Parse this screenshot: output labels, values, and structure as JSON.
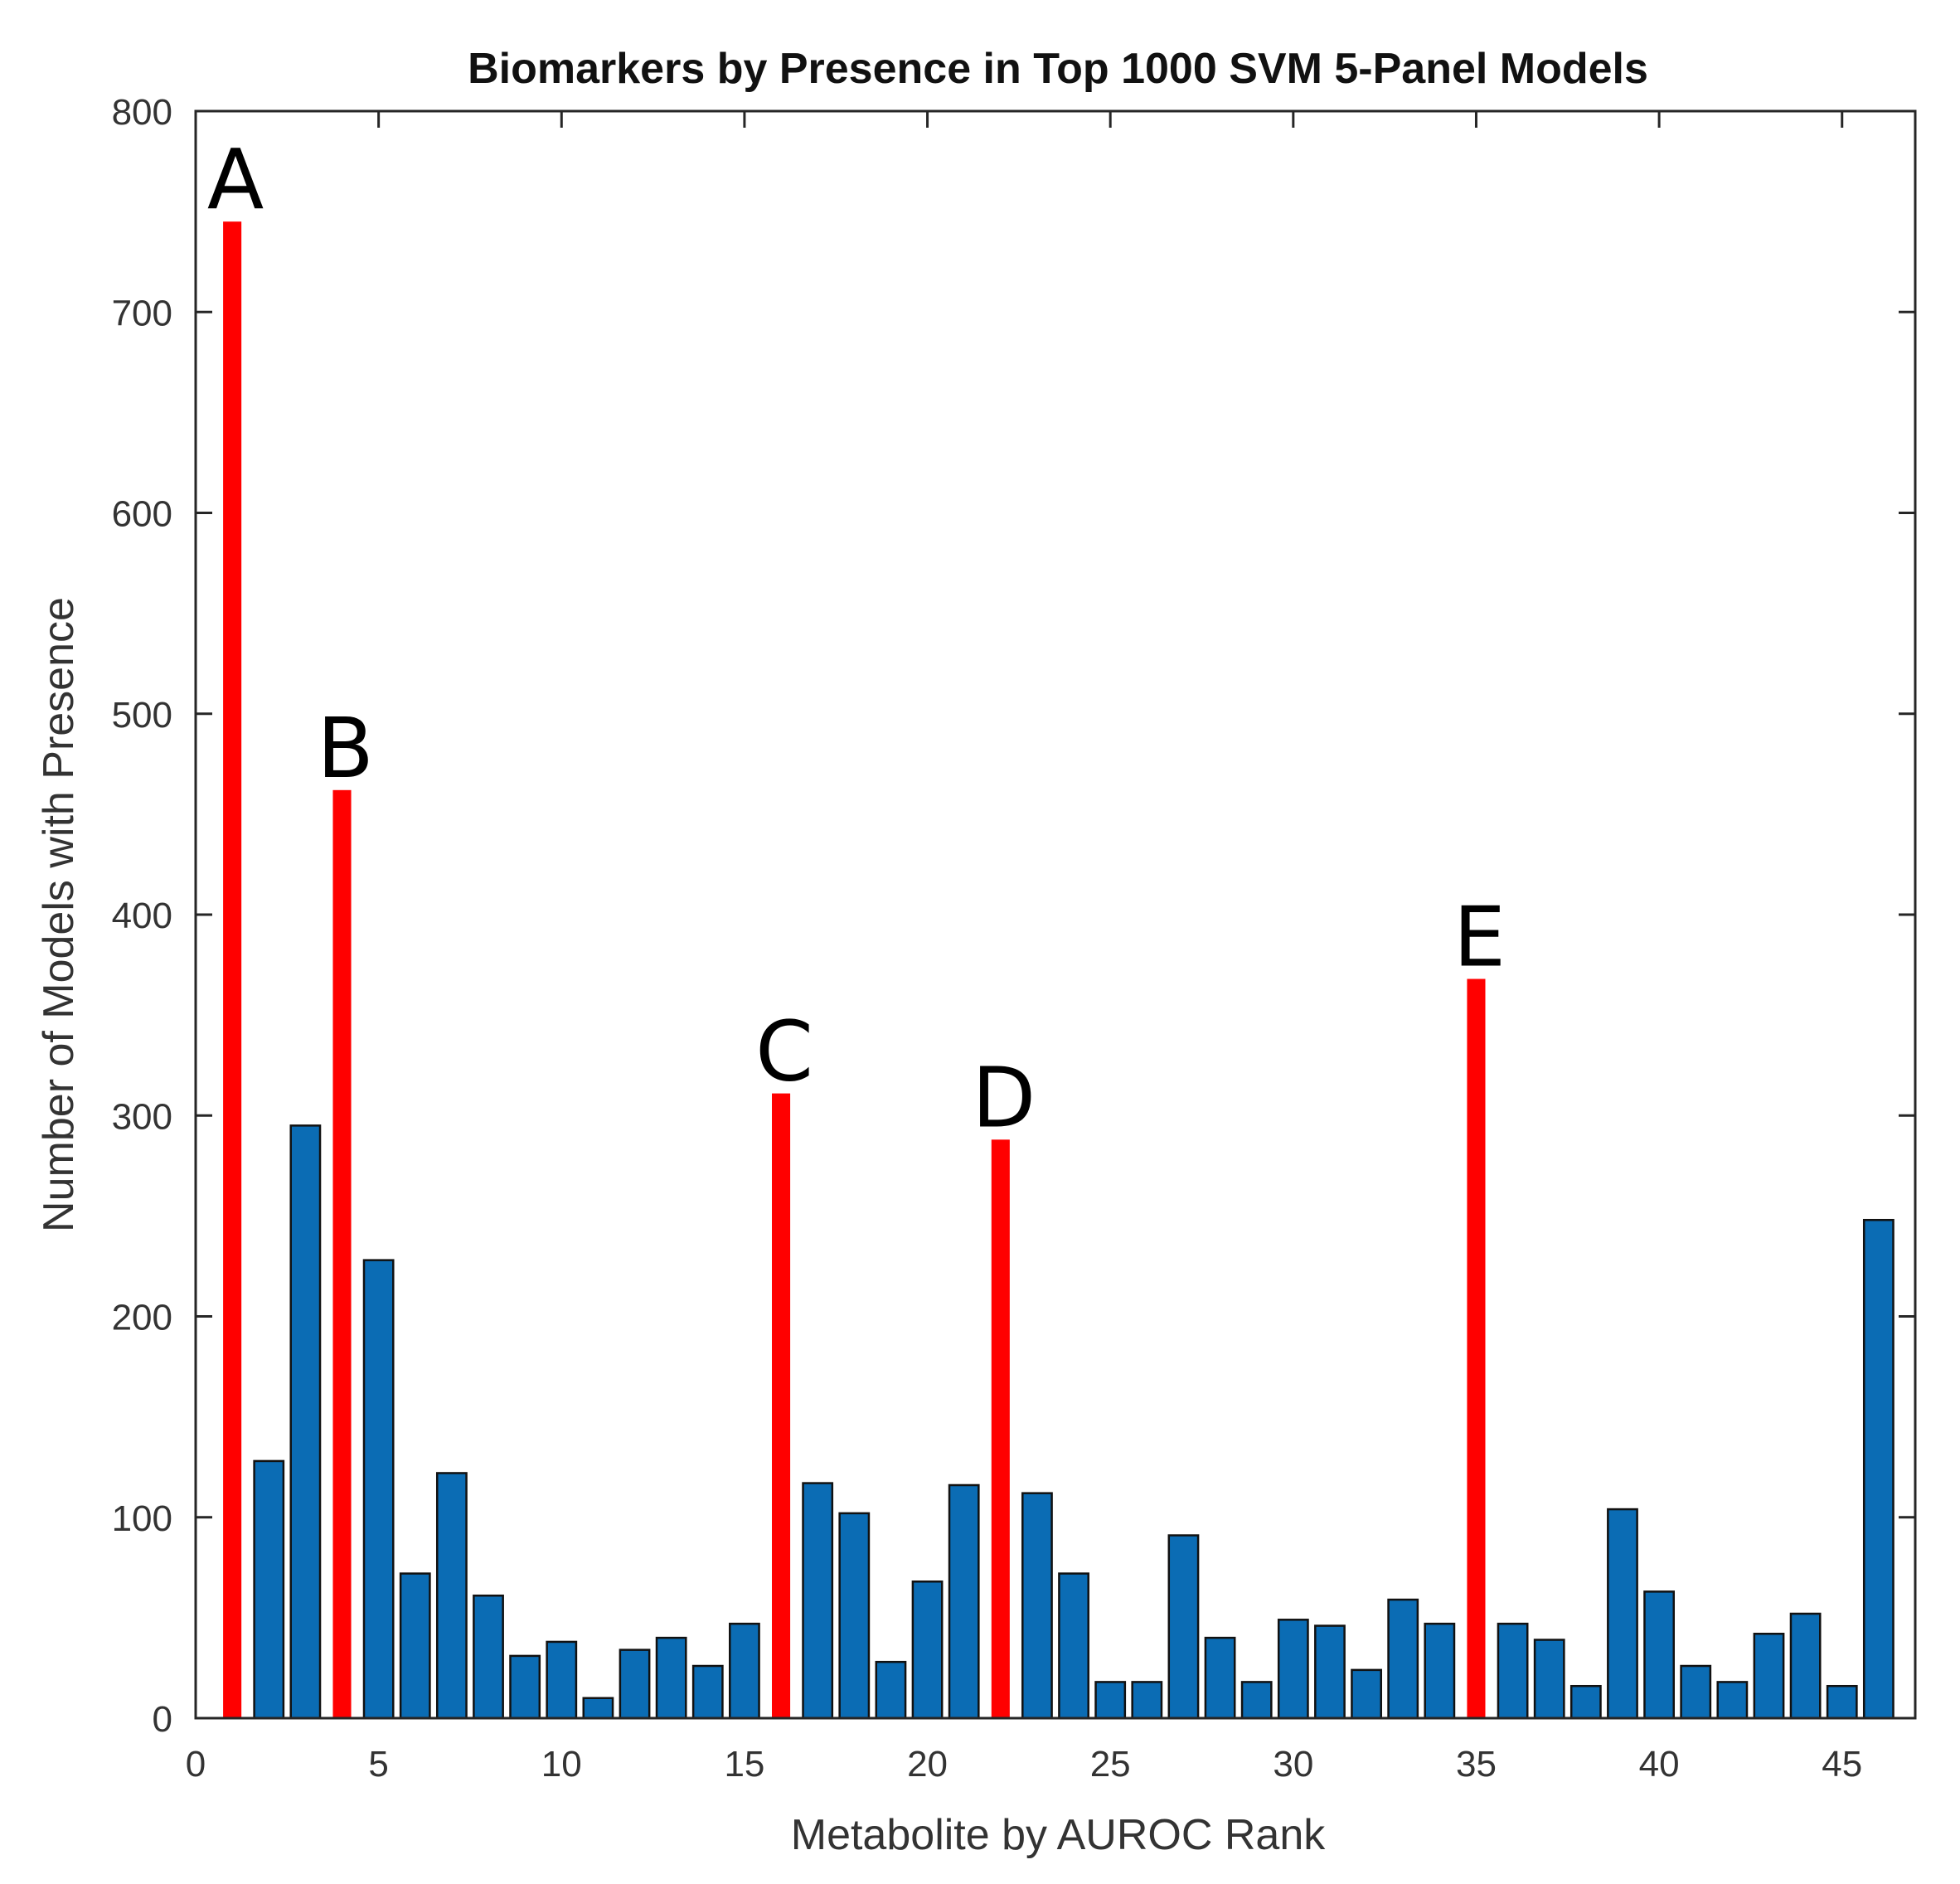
{
  "chart_data": {
    "type": "bar",
    "title": "Biomarkers by Presence in Top 1000 SVM 5-Panel Models",
    "xlabel": "Metabolite by AUROC Rank",
    "ylabel": "Number of Models with Presence",
    "xlim": [
      0,
      47
    ],
    "ylim": [
      0,
      800
    ],
    "xticks": [
      0,
      5,
      10,
      15,
      20,
      25,
      30,
      35,
      40,
      45
    ],
    "yticks": [
      0,
      100,
      200,
      300,
      400,
      500,
      600,
      700,
      800
    ],
    "colors": {
      "default": "#0b6cb4",
      "highlight": "#ff0000",
      "edge": "#111111"
    },
    "x": [
      1,
      2,
      3,
      4,
      5,
      6,
      7,
      8,
      9,
      10,
      11,
      12,
      13,
      14,
      15,
      16,
      17,
      18,
      19,
      20,
      21,
      22,
      23,
      24,
      25,
      26,
      27,
      28,
      29,
      30,
      31,
      32,
      33,
      34,
      35,
      36,
      37,
      38,
      39,
      40,
      41,
      42,
      43,
      44,
      45,
      46
    ],
    "values": [
      745,
      128,
      295,
      462,
      228,
      72,
      122,
      61,
      31,
      38,
      10,
      34,
      40,
      26,
      47,
      311,
      117,
      102,
      28,
      68,
      116,
      288,
      112,
      72,
      18,
      18,
      91,
      40,
      18,
      49,
      46,
      24,
      59,
      47,
      368,
      47,
      39,
      16,
      104,
      63,
      26,
      18,
      42,
      52,
      16,
      248
    ],
    "highlighted": [
      {
        "x": 1,
        "label": "A"
      },
      {
        "x": 4,
        "label": "B"
      },
      {
        "x": 16,
        "label": "C"
      },
      {
        "x": 22,
        "label": "D"
      },
      {
        "x": 35,
        "label": "E"
      }
    ]
  }
}
